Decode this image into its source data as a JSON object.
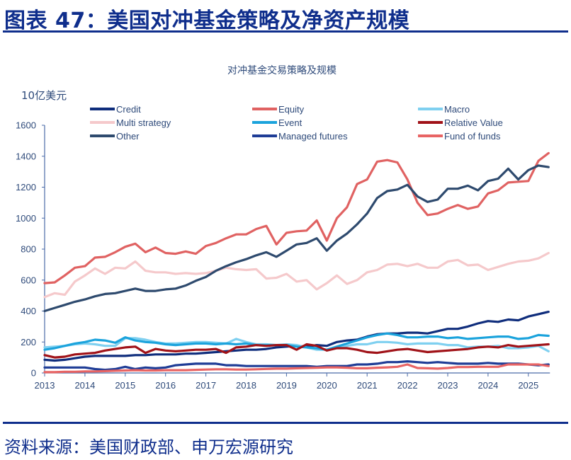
{
  "figure": {
    "title": "图表 47：美国对冲基金策略及净资产规模",
    "source": "资料来源：美国财政部、申万宏源研究"
  },
  "chart_data": {
    "type": "line",
    "title": "对冲基金交易策略及规模",
    "ylabel": "10亿美元",
    "xlabel": "",
    "ylim": [
      0,
      1600
    ],
    "yticks": [
      0,
      200,
      400,
      600,
      800,
      1000,
      1200,
      1400,
      1600
    ],
    "xlim": [
      2013,
      2025.75
    ],
    "xticks": [
      "2013",
      "2014",
      "2015",
      "2016",
      "2017",
      "2018",
      "2019",
      "2020",
      "2021",
      "2022",
      "2023",
      "2024",
      "2025"
    ],
    "x_start": 2013.0,
    "x_step": 0.25,
    "grid": false,
    "legend_position": "top",
    "series": [
      {
        "name": "Credit",
        "color": "#0F2D7C",
        "values": [
          85,
          80,
          85,
          95,
          105,
          110,
          110,
          110,
          110,
          115,
          115,
          120,
          120,
          120,
          125,
          125,
          130,
          135,
          140,
          145,
          150,
          150,
          155,
          165,
          170,
          175,
          170,
          180,
          175,
          200,
          210,
          215,
          235,
          250,
          255,
          255,
          260,
          260,
          255,
          270,
          285,
          285,
          300,
          320,
          335,
          330,
          345,
          340,
          365,
          380,
          395
        ]
      },
      {
        "name": "Equity",
        "color": "#E06262",
        "values": [
          580,
          585,
          630,
          680,
          690,
          745,
          750,
          780,
          815,
          835,
          780,
          810,
          775,
          770,
          785,
          770,
          820,
          840,
          870,
          895,
          895,
          930,
          950,
          830,
          905,
          915,
          920,
          985,
          855,
          1000,
          1070,
          1220,
          1250,
          1365,
          1375,
          1360,
          1250,
          1100,
          1020,
          1030,
          1060,
          1085,
          1060,
          1075,
          1160,
          1180,
          1230,
          1235,
          1240,
          1370,
          1420
        ]
      },
      {
        "name": "Macro",
        "color": "#7FD0F0",
        "values": [
          165,
          170,
          175,
          185,
          190,
          185,
          175,
          175,
          225,
          225,
          215,
          200,
          190,
          190,
          195,
          200,
          200,
          195,
          190,
          220,
          200,
          185,
          185,
          180,
          185,
          180,
          165,
          150,
          150,
          160,
          175,
          185,
          185,
          200,
          200,
          195,
          185,
          190,
          190,
          190,
          180,
          180,
          165,
          170,
          170,
          175,
          160,
          160,
          165,
          175,
          140
        ]
      },
      {
        "name": "Multi strategy",
        "color": "#F5C9CB",
        "values": [
          490,
          515,
          505,
          590,
          630,
          675,
          640,
          680,
          675,
          720,
          660,
          650,
          650,
          640,
          645,
          640,
          645,
          660,
          680,
          670,
          665,
          670,
          610,
          615,
          640,
          590,
          600,
          540,
          580,
          630,
          575,
          600,
          650,
          665,
          700,
          705,
          690,
          705,
          680,
          680,
          720,
          730,
          695,
          700,
          665,
          685,
          705,
          720,
          725,
          740,
          775
        ]
      },
      {
        "name": "Event",
        "color": "#1BA3DC",
        "values": [
          150,
          160,
          175,
          190,
          200,
          215,
          210,
          195,
          230,
          210,
          200,
          195,
          185,
          180,
          185,
          190,
          190,
          185,
          190,
          185,
          190,
          180,
          180,
          180,
          180,
          170,
          165,
          160,
          150,
          170,
          190,
          210,
          230,
          245,
          255,
          245,
          230,
          230,
          235,
          235,
          225,
          230,
          220,
          225,
          230,
          235,
          235,
          220,
          225,
          245,
          240
        ]
      },
      {
        "name": "Relative Value",
        "color": "#A01218",
        "values": [
          115,
          100,
          105,
          120,
          125,
          130,
          145,
          155,
          165,
          170,
          130,
          155,
          145,
          140,
          145,
          150,
          150,
          155,
          130,
          165,
          170,
          180,
          175,
          180,
          180,
          150,
          185,
          175,
          145,
          160,
          160,
          150,
          135,
          130,
          140,
          150,
          155,
          145,
          135,
          140,
          145,
          150,
          155,
          165,
          170,
          165,
          180,
          170,
          175,
          180,
          185
        ]
      },
      {
        "name": "Other",
        "color": "#2E4A6E",
        "values": [
          400,
          420,
          440,
          460,
          475,
          495,
          510,
          515,
          530,
          545,
          530,
          530,
          540,
          545,
          565,
          595,
          620,
          660,
          690,
          715,
          735,
          760,
          780,
          750,
          790,
          830,
          840,
          870,
          790,
          855,
          900,
          960,
          1030,
          1130,
          1175,
          1185,
          1215,
          1140,
          1105,
          1120,
          1190,
          1190,
          1210,
          1180,
          1240,
          1255,
          1320,
          1250,
          1310,
          1340,
          1330
        ]
      },
      {
        "name": "Managed futures",
        "color": "#1E3C96",
        "values": [
          35,
          35,
          35,
          35,
          35,
          25,
          20,
          25,
          40,
          25,
          35,
          30,
          35,
          50,
          55,
          60,
          60,
          60,
          50,
          50,
          45,
          45,
          45,
          45,
          45,
          45,
          45,
          40,
          45,
          45,
          45,
          55,
          55,
          60,
          70,
          70,
          75,
          70,
          65,
          70,
          65,
          60,
          60,
          60,
          65,
          60,
          60,
          60,
          55,
          50,
          55
        ]
      },
      {
        "name": "Fund of funds",
        "color": "#E86464",
        "values": [
          5,
          5,
          8,
          8,
          10,
          10,
          12,
          14,
          16,
          18,
          16,
          16,
          18,
          18,
          18,
          20,
          22,
          24,
          24,
          22,
          22,
          24,
          26,
          28,
          28,
          30,
          32,
          34,
          36,
          36,
          34,
          30,
          30,
          34,
          36,
          40,
          55,
          32,
          30,
          28,
          32,
          38,
          38,
          40,
          40,
          40,
          55,
          55,
          55,
          55,
          45
        ]
      }
    ]
  },
  "colors": {
    "title": "#0F2E8C",
    "axis": "#4A6AA8",
    "text": "#2E4A7A"
  }
}
